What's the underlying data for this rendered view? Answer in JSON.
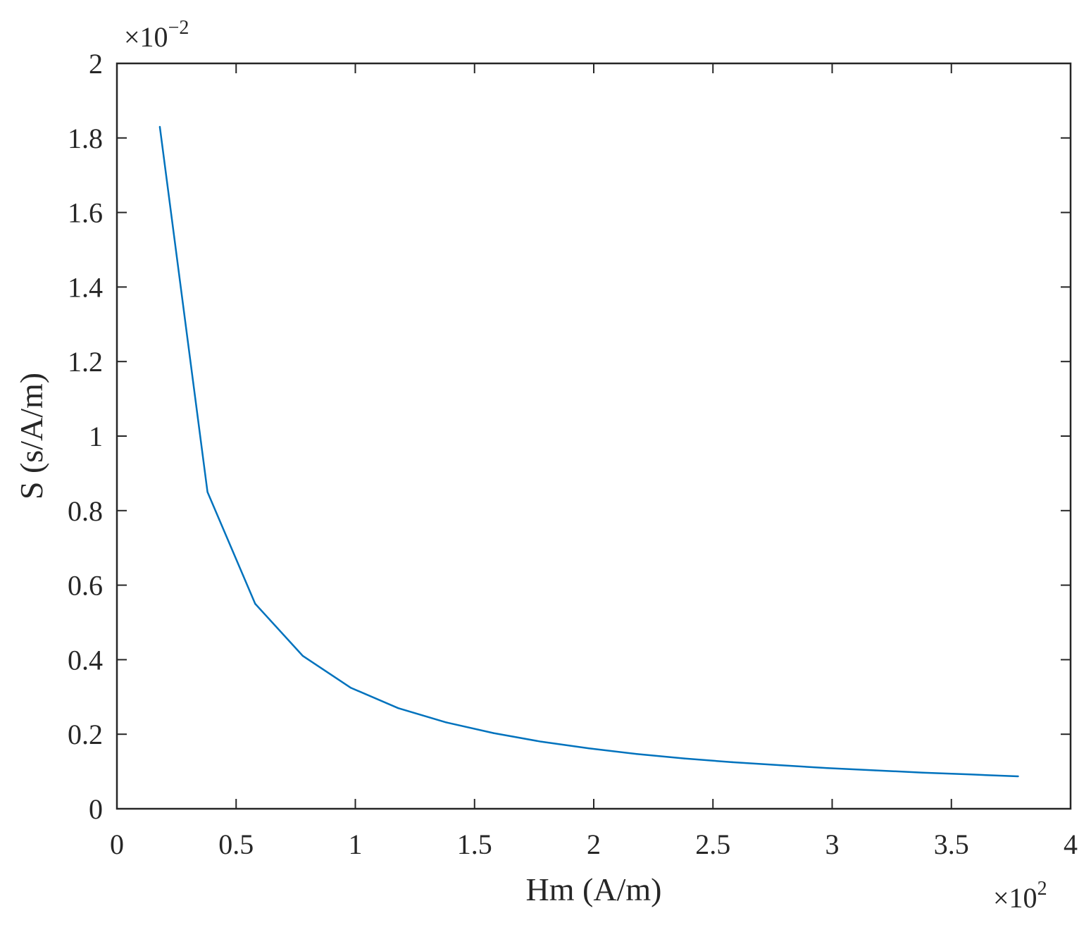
{
  "chart_data": {
    "type": "line",
    "xlabel": "Hm (A/m)",
    "ylabel": "S (s/A/m)",
    "x_multiplier": {
      "prefix": "×10",
      "exponent": "2"
    },
    "y_multiplier": {
      "prefix": "×10",
      "exponent": "−2"
    },
    "xlim": [
      0,
      4
    ],
    "ylim": [
      0,
      2
    ],
    "x_ticks": [
      0,
      0.5,
      1,
      1.5,
      2,
      2.5,
      3,
      3.5,
      4
    ],
    "x_tick_labels": [
      "0",
      "0.5",
      "1",
      "1.5",
      "2",
      "2.5",
      "3",
      "3.5",
      "4"
    ],
    "y_ticks": [
      0,
      0.2,
      0.4,
      0.6,
      0.8,
      1,
      1.2,
      1.4,
      1.6,
      1.8,
      2
    ],
    "y_tick_labels": [
      "0",
      "0.2",
      "0.4",
      "0.6",
      "0.8",
      "1",
      "1.2",
      "1.4",
      "1.6",
      "1.8",
      "2"
    ],
    "grid": false,
    "series": [
      {
        "color": "#0072BD",
        "x": [
          0.18,
          0.38,
          0.58,
          0.78,
          0.98,
          1.18,
          1.38,
          1.58,
          1.78,
          1.98,
          2.18,
          2.38,
          2.58,
          2.78,
          2.98,
          3.18,
          3.38,
          3.58,
          3.78
        ],
        "y": [
          1.83,
          0.85,
          0.55,
          0.41,
          0.325,
          0.27,
          0.232,
          0.203,
          0.18,
          0.162,
          0.147,
          0.135,
          0.125,
          0.117,
          0.109,
          0.103,
          0.097,
          0.092,
          0.087
        ]
      }
    ]
  }
}
